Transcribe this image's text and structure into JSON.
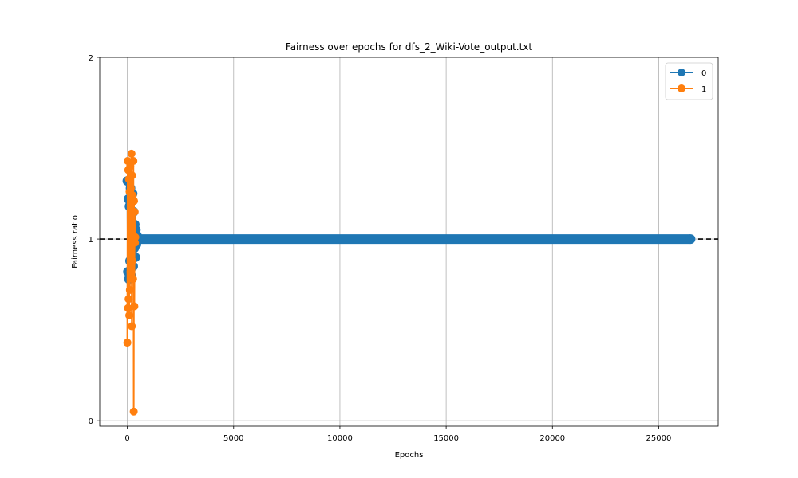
{
  "chart_data": {
    "type": "line",
    "title": "Fairness over epochs for dfs_2_Wiki-Vote_output.txt",
    "xlabel": "Epochs",
    "ylabel": "Fairness ratio",
    "xlim": [
      -1300,
      27800
    ],
    "ylim": [
      -0.03,
      2.0
    ],
    "xticks": [
      0,
      5000,
      10000,
      15000,
      20000,
      25000
    ],
    "yticks": [
      0,
      1,
      2
    ],
    "grid": true,
    "legend_position": "top-right",
    "reference_line": {
      "y": 1,
      "style": "dashed",
      "color": "#000000"
    },
    "series": [
      {
        "name": "0",
        "color": "#1f77b4",
        "marker": "circle",
        "initial_x": [
          0,
          25,
          50,
          75,
          100,
          125,
          150,
          175,
          200,
          225,
          250,
          275,
          300,
          325,
          350,
          375,
          400,
          425,
          450
        ],
        "initial_y": [
          1.32,
          0.82,
          1.22,
          0.78,
          1.18,
          0.88,
          1.28,
          0.8,
          1.12,
          0.92,
          1.25,
          0.85,
          1.15,
          0.95,
          1.08,
          0.9,
          1.05,
          0.97,
          1.02
        ],
        "steady_x_range": [
          450,
          26500
        ],
        "steady_y": 1.0
      },
      {
        "name": "1",
        "color": "#ff7f0e",
        "marker": "circle",
        "x": [
          0,
          15,
          30,
          45,
          60,
          75,
          90,
          105,
          120,
          135,
          150,
          165,
          180,
          195,
          210,
          225,
          240,
          255,
          270,
          285,
          300,
          315,
          330,
          345,
          360,
          375
        ],
        "y": [
          0.43,
          1.43,
          0.62,
          1.38,
          0.67,
          1.33,
          0.58,
          1.26,
          0.72,
          1.4,
          0.82,
          1.28,
          0.92,
          1.47,
          0.52,
          1.35,
          0.88,
          1.24,
          0.78,
          1.43,
          0.05,
          1.21,
          0.63,
          1.15,
          0.98,
          1.01
        ]
      }
    ]
  }
}
